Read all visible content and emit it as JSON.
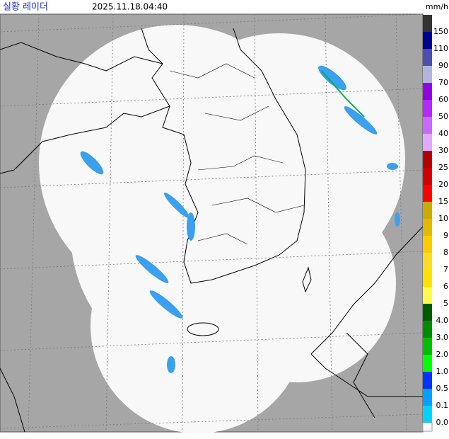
{
  "header": {
    "title": "실황 레이더",
    "time": "2025.11.18.04:40",
    "unit": "mm/h"
  },
  "legend": {
    "items": [
      {
        "label": "150",
        "color": "#333333"
      },
      {
        "label": "110",
        "color": "#000390"
      },
      {
        "label": "90",
        "color": "#4c4eb1"
      },
      {
        "label": "70",
        "color": "#b3b4de"
      },
      {
        "label": "60",
        "color": "#9300e4"
      },
      {
        "label": "50",
        "color": "#b329ff"
      },
      {
        "label": "40",
        "color": "#c969ff"
      },
      {
        "label": "30",
        "color": "#dfa9ff"
      },
      {
        "label": "25",
        "color": "#b40000"
      },
      {
        "label": "20",
        "color": "#d20000"
      },
      {
        "label": "15",
        "color": "#ff0000"
      },
      {
        "label": "10",
        "color": "#ccaa00"
      },
      {
        "label": "9",
        "color": "#e0b900"
      },
      {
        "label": "8",
        "color": "#f9cd00"
      },
      {
        "label": "7",
        "color": "#ffdc1f"
      },
      {
        "label": "6",
        "color": "#ffe100"
      },
      {
        "label": "5",
        "color": "#fff94c"
      },
      {
        "label": "4.0",
        "color": "#005a00"
      },
      {
        "label": "3.0",
        "color": "#008c00"
      },
      {
        "label": "2.0",
        "color": "#00be00"
      },
      {
        "label": "1.0",
        "color": "#00ff00"
      },
      {
        "label": "0.5",
        "color": "#0033ff"
      },
      {
        "label": "0.1",
        "color": "#00a0ff"
      },
      {
        "label": "0.0",
        "color": "#00d2ff"
      }
    ]
  }
}
